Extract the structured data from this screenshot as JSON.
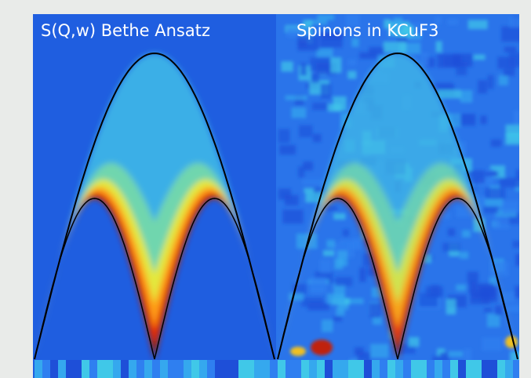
{
  "chart_data": [
    {
      "type": "heatmap",
      "title": "S(Q,w) Bethe Ansatz",
      "xlabel": "",
      "ylabel": "",
      "colormap": [
        "#1e4fd8",
        "#2f7ff0",
        "#35c6e6",
        "#7ee0a0",
        "#f0ea30",
        "#ff9a10",
        "#e83010",
        "#8a0a06"
      ],
      "boundary": "black",
      "description_of_features": [
        "upper-boundary-arch",
        "lower-boundary-arches",
        "intense-band-along-lower-boundary"
      ]
    },
    {
      "type": "heatmap",
      "title": "Spinons in KCuF3",
      "xlabel": "",
      "ylabel": "",
      "colormap": [
        "#1e4fd8",
        "#2f7ff0",
        "#35c6e6",
        "#7ee0a0",
        "#f0ea30",
        "#ff9a10",
        "#e83010",
        "#8a0a06"
      ],
      "boundary": "black",
      "description_of_features": [
        "upper-boundary-arch",
        "lower-boundary-arches",
        "intense-band-along-lower-boundary"
      ]
    }
  ]
}
